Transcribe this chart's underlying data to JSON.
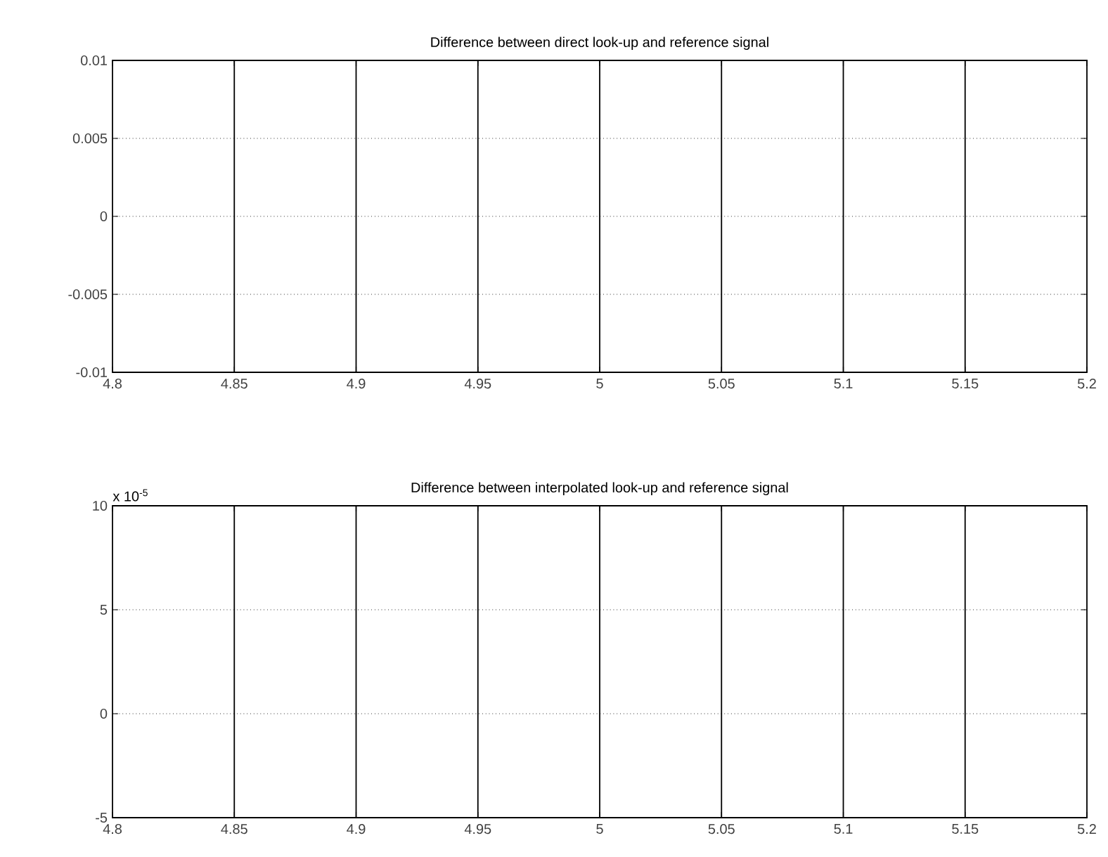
{
  "chart_data": [
    {
      "type": "line",
      "title": "Difference between direct look-up and reference signal",
      "xlim": [
        4.8,
        5.2
      ],
      "ylim": [
        -0.01,
        0.01
      ],
      "xticks": [
        4.8,
        4.85,
        4.9,
        4.95,
        5,
        5.05,
        5.1,
        5.15,
        5.2
      ],
      "yticks": [
        -0.01,
        -0.005,
        0,
        0.005,
        0.01
      ],
      "grid": "y",
      "series": [
        {
          "color": "#000000",
          "x": [
            4.85,
            4.85,
            4.9,
            4.9,
            4.95,
            4.95,
            5,
            5,
            5.05,
            5.05,
            5.1,
            5.1,
            5.15,
            5.15
          ],
          "values": [
            -0.01,
            0.01,
            0.01,
            -0.01,
            -0.01,
            0.01,
            0.01,
            -0.01,
            -0.01,
            0.01,
            0.01,
            -0.01,
            -0.01,
            0.01
          ]
        }
      ]
    },
    {
      "type": "line",
      "title": "Difference between interpolated look-up and reference signal",
      "annotations": [
        "x 10$^{-5}$"
      ],
      "xlim": [
        4.8,
        5.2
      ],
      "ylim": [
        -5,
        10
      ],
      "xticks": [
        4.8,
        4.85,
        4.9,
        4.95,
        5,
        5.05,
        5.1,
        5.15,
        5.2
      ],
      "yticks": [
        -5,
        0,
        5,
        10
      ],
      "grid": "y",
      "series": [
        {
          "color": "#000000",
          "x": [
            4.85,
            4.85,
            4.9,
            4.9,
            4.95,
            4.95,
            5,
            5,
            5.05,
            5.05,
            5.1,
            5.1,
            5.15,
            5.15
          ],
          "values": [
            -5,
            10,
            10,
            -5,
            -5,
            10,
            10,
            -5,
            -5,
            10,
            10,
            -5,
            -5,
            10
          ]
        }
      ]
    }
  ]
}
